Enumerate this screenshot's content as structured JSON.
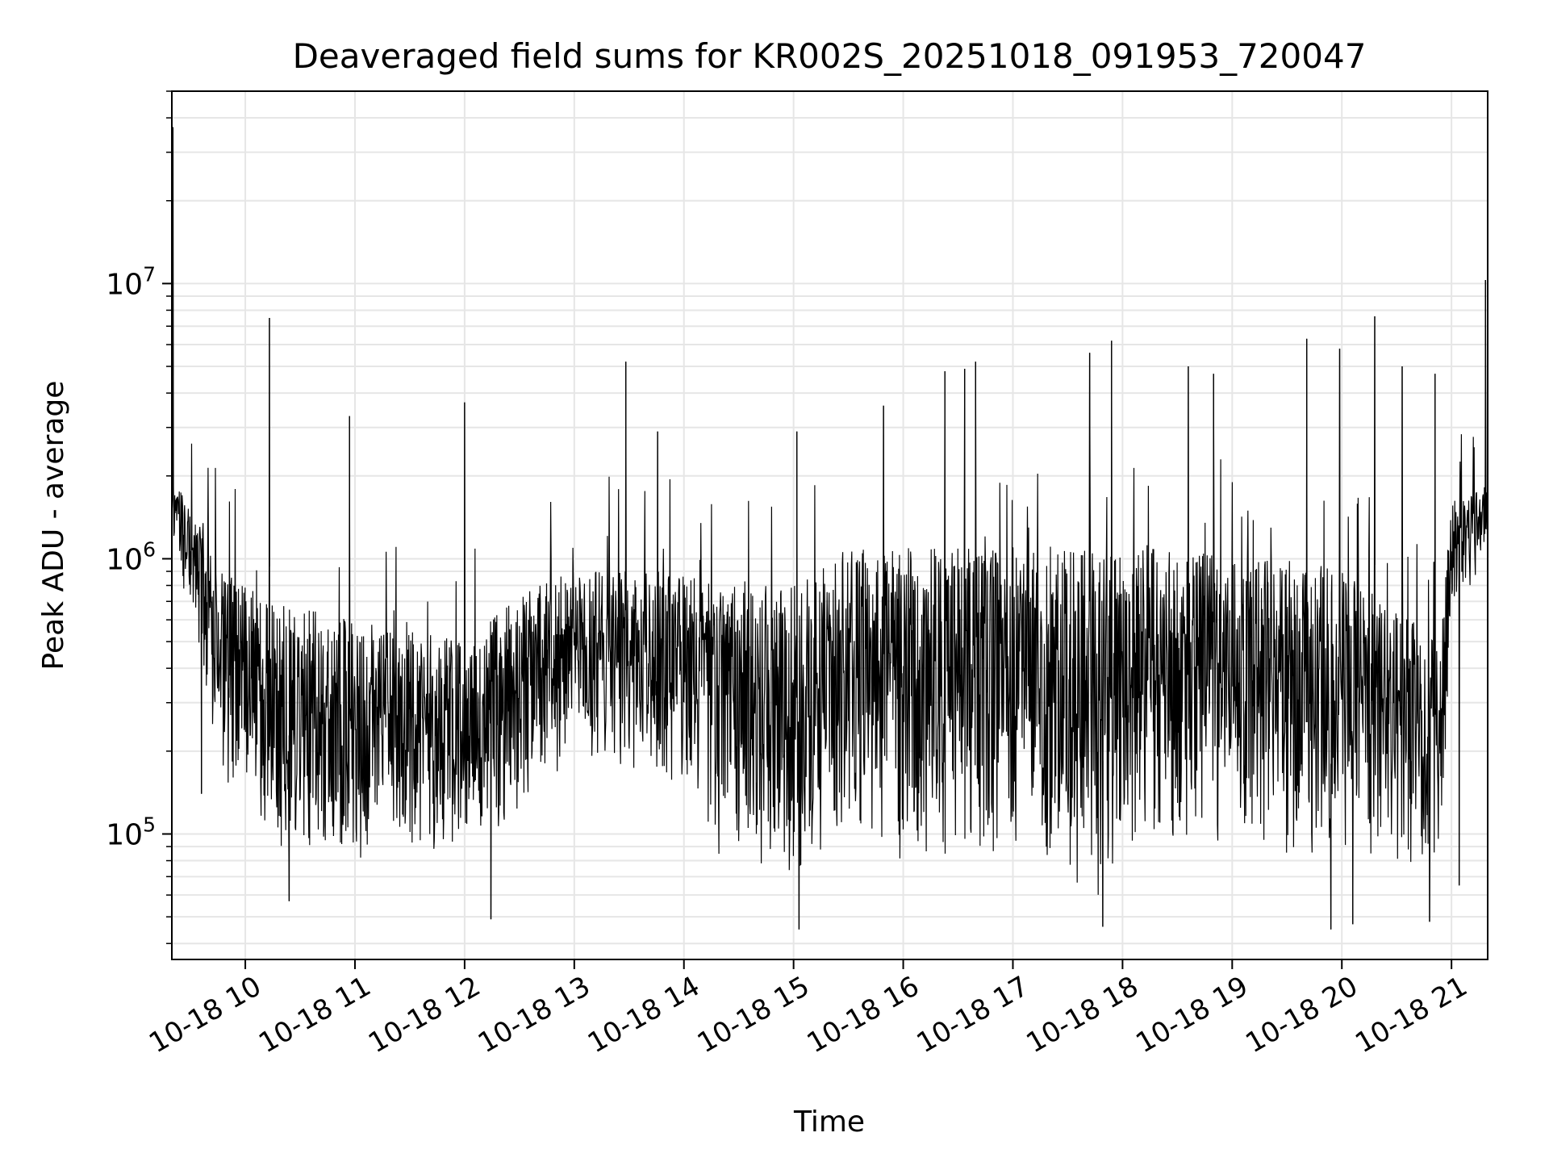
{
  "chart_data": {
    "type": "line",
    "title": "Deaveraged field sums for KR002S_20251018_091953_720047",
    "xlabel": "Time",
    "ylabel": "Peak ADU - average",
    "yscale": "log",
    "ylim": [
      35000,
      50000000
    ],
    "xlim_hours": [
      9.33,
      21.33
    ],
    "grid": true,
    "line_color": "#000000",
    "x_ticks": [
      {
        "hour": 10,
        "label": "10-18 10"
      },
      {
        "hour": 11,
        "label": "10-18 11"
      },
      {
        "hour": 12,
        "label": "10-18 12"
      },
      {
        "hour": 13,
        "label": "10-18 13"
      },
      {
        "hour": 14,
        "label": "10-18 14"
      },
      {
        "hour": 15,
        "label": "10-18 15"
      },
      {
        "hour": 16,
        "label": "10-18 16"
      },
      {
        "hour": 17,
        "label": "10-18 17"
      },
      {
        "hour": 18,
        "label": "10-18 18"
      },
      {
        "hour": 19,
        "label": "10-18 19"
      },
      {
        "hour": 20,
        "label": "10-18 20"
      },
      {
        "hour": 21,
        "label": "10-18 21"
      }
    ],
    "y_ticks": [
      {
        "value": 100000,
        "base": "10",
        "exp": "5"
      },
      {
        "value": 1000000,
        "base": "10",
        "exp": "6"
      },
      {
        "value": 10000000,
        "base": "10",
        "exp": "7"
      }
    ],
    "envelope": {
      "description_hours": [
        9.33,
        9.5,
        9.8,
        10.3,
        11.0,
        12.0,
        12.6,
        13.0,
        14.0,
        14.3,
        15.0,
        15.5,
        16.0,
        17.0,
        17.8,
        18.0,
        19.0,
        20.0,
        20.9,
        21.0,
        21.33
      ],
      "high": [
        2000000,
        1600000,
        900000,
        700000,
        600000,
        500000,
        800000,
        900000,
        900000,
        800000,
        800000,
        1100000,
        1100000,
        1100000,
        1100000,
        1100000,
        1100000,
        900000,
        500000,
        1600000,
        1900000
      ],
      "low": [
        1200000,
        600000,
        150000,
        90000,
        80000,
        90000,
        120000,
        200000,
        150000,
        80000,
        70000,
        90000,
        80000,
        80000,
        55000,
        90000,
        90000,
        80000,
        70000,
        600000,
        1000000
      ]
    },
    "spikes": [
      {
        "hour": 9.34,
        "value": 37000000
      },
      {
        "hour": 10.22,
        "value": 7500000
      },
      {
        "hour": 10.95,
        "value": 3300000
      },
      {
        "hour": 12.0,
        "value": 3700000
      },
      {
        "hour": 13.47,
        "value": 5200000
      },
      {
        "hour": 13.76,
        "value": 2900000
      },
      {
        "hour": 15.03,
        "value": 2900000
      },
      {
        "hour": 15.82,
        "value": 3600000
      },
      {
        "hour": 16.38,
        "value": 4800000
      },
      {
        "hour": 16.56,
        "value": 4900000
      },
      {
        "hour": 16.66,
        "value": 5200000
      },
      {
        "hour": 17.7,
        "value": 5600000
      },
      {
        "hour": 17.9,
        "value": 6200000
      },
      {
        "hour": 18.6,
        "value": 5000000
      },
      {
        "hour": 18.83,
        "value": 4700000
      },
      {
        "hour": 19.68,
        "value": 6300000
      },
      {
        "hour": 19.98,
        "value": 5800000
      },
      {
        "hour": 20.3,
        "value": 7600000
      },
      {
        "hour": 20.55,
        "value": 5000000
      },
      {
        "hour": 20.85,
        "value": 4700000
      },
      {
        "hour": 21.31,
        "value": 10300000
      }
    ],
    "dips": [
      {
        "hour": 9.6,
        "value": 140000
      },
      {
        "hour": 10.4,
        "value": 57000
      },
      {
        "hour": 12.24,
        "value": 49000
      },
      {
        "hour": 15.05,
        "value": 45000
      },
      {
        "hour": 17.82,
        "value": 46000
      },
      {
        "hour": 19.9,
        "value": 45000
      },
      {
        "hour": 20.1,
        "value": 47000
      },
      {
        "hour": 20.8,
        "value": 48000
      },
      {
        "hour": 21.07,
        "value": 65000
      }
    ]
  }
}
